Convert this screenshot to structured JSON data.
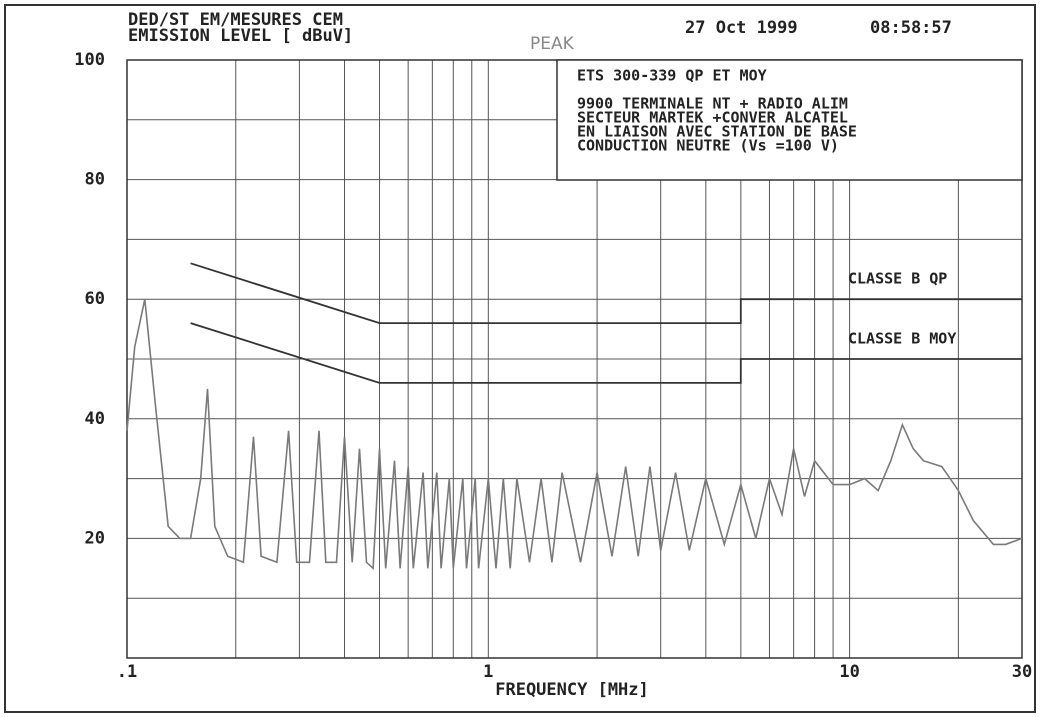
{
  "chart_data": {
    "type": "line",
    "header_left": [
      "DED/ST EM/MESURES CEM",
      "EMISSION LEVEL [ dBuV]"
    ],
    "date": "27 Oct 1999",
    "time": "08:58:57",
    "annotation_box": [
      "ETS 300-339 QP ET MOY",
      "9900 TERMINALE NT + RADIO ALIM",
      "SECTEUR MARTEK +CONVER ALCATEL",
      "EN LIAISON AVEC STATION DE BASE",
      "CONDUCTION NEUTRE (Vs =100 V)"
    ],
    "x_label": "FREQUENCY [MHz]",
    "log_x": true,
    "xlim": [
      0.1,
      30
    ],
    "xticks": [
      {
        "value": 0.1,
        "label": ".1"
      },
      1,
      10,
      30
    ],
    "xgrid": [
      0.2,
      0.3,
      0.4,
      0.5,
      0.6,
      0.7,
      0.8,
      0.9,
      1,
      2,
      3,
      4,
      5,
      6,
      7,
      8,
      9,
      10,
      20
    ],
    "ylim": [
      0,
      100
    ],
    "yticks": [
      20,
      40,
      60,
      80,
      100
    ],
    "ygrid": [
      10,
      20,
      30,
      40,
      50,
      60,
      70,
      80,
      90
    ],
    "series": [
      {
        "name": "PEAK",
        "color": "#7a7a7a",
        "x": [
          0.1,
          0.105,
          0.112,
          0.12,
          0.13,
          0.14,
          0.15,
          0.16,
          0.167,
          0.175,
          0.19,
          0.21,
          0.224,
          0.235,
          0.26,
          0.28,
          0.295,
          0.32,
          0.34,
          0.355,
          0.38,
          0.4,
          0.42,
          0.44,
          0.46,
          0.48,
          0.5,
          0.52,
          0.55,
          0.57,
          0.6,
          0.62,
          0.66,
          0.68,
          0.72,
          0.74,
          0.78,
          0.8,
          0.85,
          0.87,
          0.92,
          0.94,
          1.0,
          1.05,
          1.1,
          1.15,
          1.2,
          1.3,
          1.4,
          1.5,
          1.6,
          1.8,
          2.0,
          2.2,
          2.4,
          2.6,
          2.8,
          3.0,
          3.3,
          3.6,
          4.0,
          4.5,
          5.0,
          5.5,
          6.0,
          6.5,
          7.0,
          7.5,
          8.0,
          9.0,
          10,
          11,
          12,
          13,
          14,
          15,
          16,
          18,
          20,
          22,
          25,
          27,
          30
        ],
        "values": [
          38,
          52,
          60,
          42,
          22,
          20,
          20,
          30,
          45,
          22,
          17,
          16,
          37,
          17,
          16,
          38,
          16,
          16,
          38,
          16,
          16,
          37,
          16,
          35,
          16,
          15,
          35,
          15,
          33,
          15,
          32,
          15,
          31,
          15,
          31,
          15,
          30,
          15,
          30,
          15,
          30,
          15,
          30,
          15,
          30,
          15,
          30,
          16,
          30,
          16,
          31,
          16,
          31,
          17,
          32,
          17,
          32,
          18,
          31,
          18,
          30,
          19,
          29,
          20,
          30,
          24,
          35,
          27,
          33,
          29,
          29,
          30,
          28,
          33,
          39,
          35,
          33,
          32,
          28,
          23,
          19,
          19,
          20
        ]
      },
      {
        "name": "CLASSE B QP",
        "color": "#333333",
        "x": [
          0.15,
          0.5,
          5,
          5,
          30
        ],
        "values": [
          66,
          56,
          56,
          60,
          60
        ]
      },
      {
        "name": "CLASSE B MOY",
        "color": "#333333",
        "x": [
          0.15,
          0.5,
          5,
          5,
          30
        ],
        "values": [
          56,
          46,
          46,
          50,
          50
        ]
      }
    ]
  }
}
